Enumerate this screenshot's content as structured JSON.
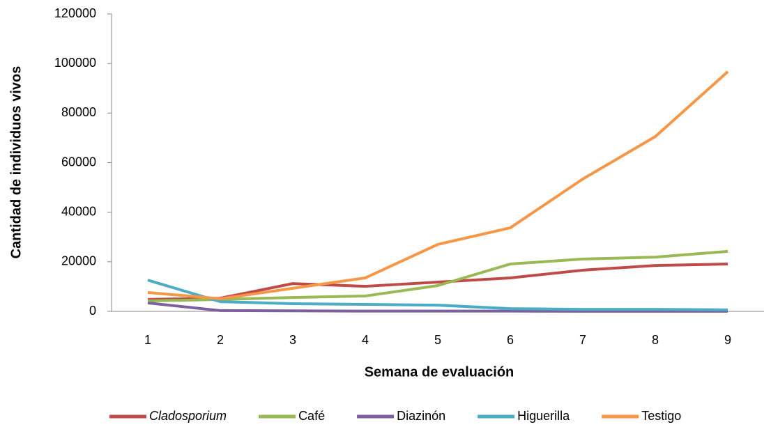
{
  "chart_data": {
    "type": "line",
    "x_label": "Semana de evaluación",
    "y_label": "Cantidad de individuos vivos",
    "categories": [
      "1",
      "2",
      "3",
      "4",
      "5",
      "6",
      "7",
      "8",
      "9"
    ],
    "series": [
      {
        "name": "Cladosporium",
        "color": "#be4b48",
        "font_style": "italic",
        "values": [
          4800,
          5300,
          11200,
          10100,
          11800,
          13500,
          16600,
          18500,
          19100
        ]
      },
      {
        "name": "Café",
        "color": "#98b954",
        "values": [
          4200,
          4800,
          5600,
          6200,
          10400,
          19100,
          21100,
          21900,
          24200
        ]
      },
      {
        "name": "Diazinón",
        "color": "#7d5fa0",
        "values": [
          3400,
          300,
          200,
          100,
          100,
          100,
          50,
          50,
          50
        ]
      },
      {
        "name": "Higuerilla",
        "color": "#4bacc6",
        "values": [
          12600,
          3900,
          3100,
          2800,
          2500,
          1100,
          800,
          800,
          600
        ]
      },
      {
        "name": "Testigo",
        "color": "#f79646",
        "values": [
          7600,
          5100,
          9300,
          13500,
          27000,
          33700,
          53400,
          70500,
          96700
        ]
      }
    ],
    "ylim": [
      0,
      120000
    ],
    "yticks": [
      0,
      20000,
      40000,
      60000,
      80000,
      100000,
      120000
    ],
    "legend": "bottom"
  }
}
